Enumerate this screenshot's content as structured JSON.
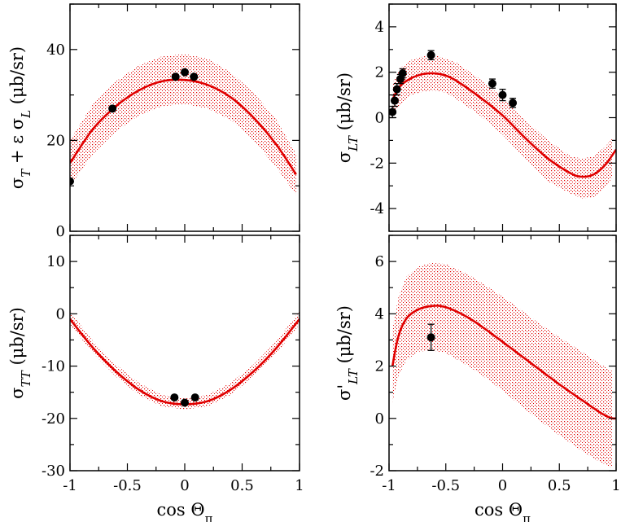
{
  "chart_data": [
    {
      "type": "line",
      "panel": "top-left",
      "ylabel": "σT + ε σL (μb/sr)",
      "ylabel_parts": {
        "main": "σ",
        "sub1": "T",
        "mid": " + ε σ",
        "sub2": "L",
        "unit": " (μb/sr)"
      },
      "xlim": [
        -1,
        1
      ],
      "ylim": [
        0,
        50
      ],
      "yticks": [
        0,
        20,
        40
      ],
      "xticks": [],
      "curve": {
        "x": [
          -1,
          -0.8,
          -0.6,
          -0.4,
          -0.2,
          0,
          0.2,
          0.4,
          0.6,
          0.8,
          0.97
        ],
        "y": [
          15,
          22.5,
          27.5,
          31,
          33,
          33.3,
          32.2,
          29.5,
          25,
          19,
          12.5
        ]
      },
      "band": {
        "x": [
          -1,
          -0.8,
          -0.6,
          -0.4,
          -0.2,
          0,
          0.2,
          0.4,
          0.6,
          0.8,
          0.97
        ],
        "lower": [
          10,
          17,
          22,
          25.5,
          27.5,
          28,
          27,
          24.5,
          20,
          14,
          8
        ],
        "upper": [
          20,
          28,
          33,
          36.5,
          38.5,
          39,
          38,
          35,
          30.5,
          24.5,
          17
        ]
      },
      "points": {
        "x": [
          -1,
          -0.63,
          -0.08,
          0,
          0.08
        ],
        "y": [
          11,
          27,
          34,
          35,
          34
        ],
        "err": [
          0.5,
          0.5,
          0.8,
          0.8,
          0.8
        ]
      }
    },
    {
      "type": "line",
      "panel": "top-right",
      "ylabel": "σLT (μb/sr)",
      "ylabel_parts": {
        "main": "σ",
        "sub1": "LT",
        "unit": "  (μb/sr)"
      },
      "xlim": [
        -1,
        1
      ],
      "ylim": [
        -5,
        5
      ],
      "yticks": [
        -4,
        -2,
        0,
        2,
        4
      ],
      "xticks": [],
      "curve": {
        "x": [
          -0.97,
          -0.9,
          -0.8,
          -0.7,
          -0.6,
          -0.5,
          -0.4,
          -0.2,
          0,
          0.2,
          0.4,
          0.6,
          0.7,
          0.8,
          0.9,
          1
        ],
        "y": [
          0.8,
          1.4,
          1.75,
          1.92,
          1.95,
          1.85,
          1.6,
          0.9,
          0.1,
          -0.9,
          -1.8,
          -2.45,
          -2.6,
          -2.5,
          -2.1,
          -1.4
        ]
      },
      "band": {
        "x": [
          -0.97,
          -0.9,
          -0.8,
          -0.7,
          -0.6,
          -0.5,
          -0.4,
          -0.2,
          0,
          0.2,
          0.4,
          0.6,
          0.7,
          0.8,
          0.9,
          0.97
        ],
        "lower": [
          0.1,
          0.6,
          1.0,
          1.15,
          1.2,
          1.1,
          0.8,
          0.1,
          -0.75,
          -1.8,
          -2.8,
          -3.35,
          -3.55,
          -3.5,
          -3.1,
          -2.6
        ],
        "upper": [
          1.5,
          2.2,
          2.55,
          2.7,
          2.75,
          2.6,
          2.4,
          1.7,
          0.9,
          -0.1,
          -1.0,
          -1.7,
          -1.8,
          -1.7,
          -1.3,
          -0.9
        ]
      },
      "points": {
        "x": [
          -0.97,
          -0.95,
          -0.93,
          -0.9,
          -0.88,
          -0.63,
          -0.09,
          0,
          0.09
        ],
        "y": [
          0.25,
          0.75,
          1.25,
          1.7,
          1.95,
          2.75,
          1.5,
          1.0,
          0.65
        ],
        "err": [
          0.25,
          0.25,
          0.25,
          0.2,
          0.2,
          0.2,
          0.2,
          0.25,
          0.2
        ]
      }
    },
    {
      "type": "line",
      "panel": "bottom-left",
      "ylabel": "σTT (μb/sr)",
      "ylabel_parts": {
        "main": "σ",
        "sub1": "TT",
        "unit": "  (μb/sr)"
      },
      "xlabel": "cos Θπ",
      "xlabel_parts": {
        "main": "cos Θ",
        "sub": "π"
      },
      "xlim": [
        -1,
        1
      ],
      "ylim": [
        -30,
        15
      ],
      "yticks": [
        -30,
        -20,
        -10,
        0,
        10
      ],
      "xticks": [
        -1,
        -0.5,
        0,
        0.5,
        1
      ],
      "curve": {
        "x": [
          -1,
          -0.8,
          -0.6,
          -0.4,
          -0.2,
          0,
          0.2,
          0.4,
          0.6,
          0.8,
          1
        ],
        "y": [
          -1,
          -6.5,
          -11,
          -14.5,
          -16.7,
          -17.3,
          -16.7,
          -14.5,
          -11,
          -6.5,
          -1
        ]
      },
      "band": {
        "x": [
          -1,
          -0.8,
          -0.6,
          -0.4,
          -0.2,
          0,
          0.2,
          0.4,
          0.6,
          0.8,
          1
        ],
        "lower": [
          -2,
          -7.5,
          -12,
          -15.5,
          -17.7,
          -18.3,
          -17.7,
          -15.5,
          -12,
          -7.5,
          -2
        ],
        "upper": [
          0.5,
          -5.2,
          -9.7,
          -13.2,
          -15.5,
          -16.2,
          -15.5,
          -13.2,
          -9.7,
          -5.2,
          0.5
        ]
      },
      "points": {
        "x": [
          -0.09,
          0,
          0.09
        ],
        "y": [
          -16,
          -17,
          -16
        ],
        "err": [
          0.5,
          0.6,
          0.5
        ]
      }
    },
    {
      "type": "line",
      "panel": "bottom-right",
      "ylabel": "σ'LT (μb/sr)",
      "ylabel_parts": {
        "main": "σ'",
        "sub1": "LT",
        "unit": "  (μb/sr)"
      },
      "xlabel": "cos Θπ",
      "xlabel_parts": {
        "main": "cos Θ",
        "sub": "π"
      },
      "xlim": [
        -1,
        1
      ],
      "ylim": [
        -2,
        7
      ],
      "yticks": [
        -2,
        0,
        2,
        4,
        6
      ],
      "xticks": [
        -1,
        -0.5,
        0,
        0.5,
        1
      ],
      "curve": {
        "x": [
          -0.97,
          -0.92,
          -0.85,
          -0.75,
          -0.62,
          -0.5,
          -0.3,
          -0.1,
          0.1,
          0.3,
          0.5,
          0.7,
          0.85,
          0.95,
          1
        ],
        "y": [
          2.0,
          3.1,
          3.8,
          4.15,
          4.3,
          4.25,
          3.85,
          3.25,
          2.6,
          1.95,
          1.3,
          0.7,
          0.25,
          0.02,
          0
        ]
      },
      "band": {
        "x": [
          -0.97,
          -0.92,
          -0.85,
          -0.75,
          -0.62,
          -0.5,
          -0.3,
          -0.1,
          0.1,
          0.3,
          0.5,
          0.7,
          0.85,
          0.97
        ],
        "lower": [
          0.6,
          1.6,
          2.2,
          2.55,
          2.6,
          2.5,
          2.0,
          1.4,
          0.7,
          0.0,
          -0.65,
          -1.25,
          -1.65,
          -1.9
        ],
        "upper": [
          3.4,
          4.6,
          5.4,
          5.8,
          5.95,
          5.9,
          5.5,
          4.95,
          4.35,
          3.7,
          3.1,
          2.55,
          2.1,
          1.8
        ]
      },
      "points": {
        "x": [
          -0.63
        ],
        "y": [
          3.1
        ],
        "err": [
          0.5
        ]
      }
    }
  ],
  "colors": {
    "curve": "#e00000",
    "band": "#e00000",
    "points": "#000000",
    "axes": "#000000"
  }
}
